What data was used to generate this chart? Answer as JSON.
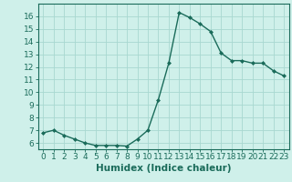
{
  "x": [
    0,
    1,
    2,
    3,
    4,
    5,
    6,
    7,
    8,
    9,
    10,
    11,
    12,
    13,
    14,
    15,
    16,
    17,
    18,
    19,
    20,
    21,
    22,
    23
  ],
  "y": [
    6.8,
    7.0,
    6.6,
    6.3,
    6.0,
    5.8,
    5.8,
    5.8,
    5.75,
    6.3,
    7.0,
    9.4,
    12.3,
    16.3,
    15.9,
    15.4,
    14.8,
    13.1,
    12.5,
    12.5,
    12.3,
    12.3,
    11.7,
    11.3
  ],
  "line_color": "#1a6b5a",
  "marker": "D",
  "marker_size": 2.0,
  "bg_color": "#cff0ea",
  "grid_color": "#a8d8d0",
  "xlabel": "Humidex (Indice chaleur)",
  "ylim": [
    5.5,
    17.0
  ],
  "xlim": [
    -0.5,
    23.5
  ],
  "yticks": [
    6,
    7,
    8,
    9,
    10,
    11,
    12,
    13,
    14,
    15,
    16
  ],
  "xticks": [
    0,
    1,
    2,
    3,
    4,
    5,
    6,
    7,
    8,
    9,
    10,
    11,
    12,
    13,
    14,
    15,
    16,
    17,
    18,
    19,
    20,
    21,
    22,
    23
  ],
  "tick_color": "#1a6b5a",
  "label_color": "#1a6b5a",
  "label_fontsize": 7.5,
  "tick_fontsize": 6.5,
  "line_width": 1.0
}
